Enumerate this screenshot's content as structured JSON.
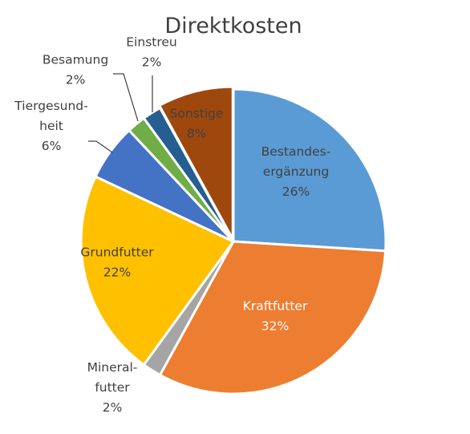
{
  "chart_data": {
    "type": "pie",
    "title": "Direktkosten",
    "slices": [
      {
        "name": "Bestandes-ergänzung",
        "label_lines": [
          "Bestandes-",
          "ergänzung"
        ],
        "value": 26,
        "value_label": "26%",
        "color": "#5b9bd5",
        "label_color": "#404040"
      },
      {
        "name": "Kraftfutter",
        "label_lines": [
          "Kraftfutter"
        ],
        "value": 32,
        "value_label": "32%",
        "color": "#ed7d31",
        "label_color": "#ffffff"
      },
      {
        "name": "Mineral-futter",
        "label_lines": [
          "Mineral-",
          "futter"
        ],
        "value": 2,
        "value_label": "2%",
        "color": "#a5a5a5",
        "label_color": "#404040"
      },
      {
        "name": "Grundfutter",
        "label_lines": [
          "Grundfutter"
        ],
        "value": 22,
        "value_label": "22%",
        "color": "#ffc000",
        "label_color": "#404040"
      },
      {
        "name": "Tiergesund-heit",
        "label_lines": [
          "Tiergesund-",
          "heit"
        ],
        "value": 6,
        "value_label": "6%",
        "color": "#4472c4",
        "label_color": "#404040"
      },
      {
        "name": "Besamung",
        "label_lines": [
          "Besamung"
        ],
        "value": 2,
        "value_label": "2%",
        "color": "#70ad47",
        "label_color": "#404040"
      },
      {
        "name": "Einstreu",
        "label_lines": [
          "Einstreu"
        ],
        "value": 2,
        "value_label": "2%",
        "color": "#255e91",
        "label_color": "#404040"
      },
      {
        "name": "Sonstige",
        "label_lines": [
          "Sonstige"
        ],
        "value": 8,
        "value_label": "8%",
        "color": "#9e480e",
        "label_color": "#404040"
      }
    ]
  }
}
